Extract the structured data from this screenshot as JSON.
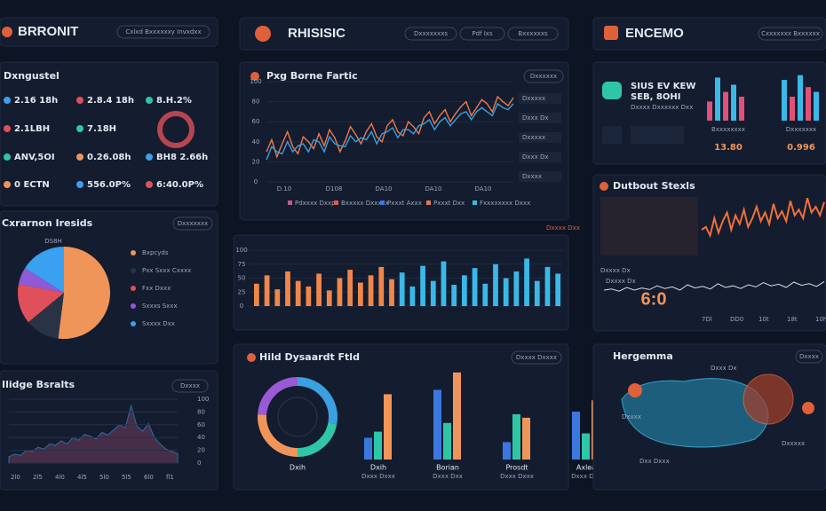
{
  "header_left": {
    "title": "BRRONIT",
    "button": "Cxlxd Bxxxxxxy Invxdxx"
  },
  "header_mid": {
    "title": "RHISISIC",
    "buttons": [
      "Dxxxxxxxs",
      "Pdf Ixs",
      "Bxxxxxxs"
    ]
  },
  "header_right": {
    "title": "ENCEMO",
    "button": "Cxxxxxxx Bxxxxxx"
  },
  "stats": {
    "title": "Dxngustel",
    "rows": [
      [
        "2.16 18h",
        "2.8.4 18h",
        "8.H.2%"
      ],
      [
        "2.1LBH",
        "7.18H"
      ],
      [
        "ANV,5OI",
        "0.26.08h",
        "BH8 2.66h"
      ],
      [
        "0 ECTN",
        "556.0P%",
        "6:40.0P%"
      ]
    ]
  },
  "pie": {
    "title": "Cxrarnon Iresids",
    "button": "Dxxxxxxx",
    "label": "DS8H",
    "values": [
      52,
      12,
      14,
      6,
      16
    ],
    "colors": [
      "#f0955a",
      "#2a3345",
      "#e0505a",
      "#8e5ad8",
      "#3aa0f0"
    ],
    "legend": [
      "Bxpcyds",
      "Pxx Sxxx Cxxxx",
      "Fxx Dxxx",
      "Sxxxs Sxxx",
      "Sxxxx Dxx"
    ]
  },
  "area": {
    "title": "Ilidge Bsralts",
    "button": "Dxxxx",
    "values": [
      10,
      14,
      12,
      20,
      18,
      25,
      22,
      30,
      28,
      35,
      30,
      40,
      36,
      45,
      42,
      38,
      48,
      44,
      52,
      60,
      55,
      90,
      58,
      50,
      62,
      40,
      30,
      22,
      18,
      15
    ],
    "ylim": [
      0,
      100
    ],
    "yticks": [
      0,
      20,
      40,
      60,
      80,
      100
    ],
    "xlabels": [
      "2l0",
      "2l5",
      "4l0",
      "4l5",
      "5l0",
      "5l5",
      "6l0",
      "fl1"
    ]
  },
  "candle": {
    "title": "Pxg Borne Fartic",
    "button": "Dxxxxxx",
    "ylim": [
      0,
      100
    ],
    "yticks": [
      0,
      20,
      40,
      60,
      80,
      100
    ],
    "series": [
      {
        "color": "#f07a4a",
        "values": [
          30,
          42,
          25,
          38,
          50,
          35,
          28,
          45,
          40,
          33,
          48,
          36,
          52,
          44,
          30,
          41,
          55,
          47,
          38,
          50,
          58,
          45,
          40,
          56,
          62,
          50,
          46,
          60,
          55,
          48,
          64,
          70,
          58,
          66,
          72,
          60,
          68,
          75,
          80,
          66,
          74,
          82,
          78,
          70,
          85,
          80,
          76,
          84
        ]
      },
      {
        "color": "#3aa0e0",
        "values": [
          22,
          35,
          30,
          28,
          40,
          30,
          36,
          38,
          30,
          42,
          40,
          30,
          45,
          38,
          36,
          35,
          46,
          40,
          44,
          42,
          50,
          38,
          48,
          50,
          54,
          44,
          52,
          52,
          48,
          56,
          58,
          62,
          52,
          60,
          64,
          56,
          62,
          68,
          70,
          62,
          70,
          74,
          70,
          66,
          78,
          74,
          72,
          78
        ]
      }
    ],
    "xlabels": [
      "D.10",
      "D108",
      "DA10",
      "DA10",
      "DA10"
    ],
    "legend": [
      "Pdxxxx Dxxp",
      "Bxxxxx Dxxxxx",
      "Pxxxt Axxx",
      "Pxxxt Dxx",
      "Fxxxxxxxx Dxxx"
    ],
    "legend_colors": [
      "#c25a8a",
      "#e05a4a",
      "#3a78e0",
      "#e07a4a",
      "#3ab8e8"
    ],
    "side": [
      "Dxxxxx",
      "Dxxx Dx",
      "Dxxxxx",
      "Dxxx Dx",
      "Dxxxx"
    ]
  },
  "bars": {
    "note": "Dxxxx Dxx",
    "ylim": [
      0,
      100
    ],
    "yticks": [
      0,
      25,
      50,
      75,
      100
    ],
    "colors": [
      "#f0874a",
      "#3ab8e8"
    ],
    "orange": [
      40,
      55,
      30,
      62,
      45,
      35,
      58,
      28,
      50,
      65,
      42,
      55,
      70,
      48
    ],
    "teal": [
      60,
      35,
      72,
      45,
      80,
      38,
      55,
      68,
      40,
      75,
      50,
      62,
      85,
      45,
      70,
      58
    ]
  },
  "donut": {
    "title": "Hild Dysaardt Ftld",
    "button": "Dxxxx Dxxxx",
    "values": [
      28,
      22,
      26,
      24
    ],
    "colors": [
      "#3aa0e0",
      "#2fc6a8",
      "#f0955a",
      "#9a5ad8"
    ],
    "groups": [
      [
        25,
        32,
        75
      ],
      [
        80,
        42,
        100
      ],
      [
        20,
        52,
        48
      ],
      [
        55,
        30,
        68
      ]
    ],
    "group_colors": [
      "#3a78e0",
      "#2fc6a8",
      "#f0955a"
    ],
    "ylim": [
      0,
      110
    ],
    "labels": [
      "Dxih",
      "Borian",
      "Prosdt",
      "Axlea"
    ],
    "sublabels": [
      "Dxxx Dxxx",
      "Dxxx Dxx",
      "Dxxx Dxxx",
      "Dxxx Dxx"
    ]
  },
  "right_stats": {
    "headline": [
      "SIUS EV KEW",
      "SEB, 8OHI"
    ],
    "caption": "Dxxxx Dxxxxxx Dxx",
    "values": [
      "13.80",
      "0.996"
    ],
    "labels": [
      "Bxxxxxxxx",
      "Dxxxxxxx"
    ],
    "chart1": [
      40,
      90,
      60,
      75,
      50
    ],
    "chart2": [
      85,
      50,
      95,
      70,
      60
    ],
    "colors": [
      "#e0507a",
      "#3ab8e8"
    ]
  },
  "right_line": {
    "title": "Dutbout Stexls",
    "big": "6:0",
    "ylim": [
      0,
      100
    ],
    "orange": [
      40,
      45,
      30,
      60,
      35,
      55,
      70,
      40,
      65,
      50,
      75,
      45,
      60,
      80,
      55,
      70,
      50,
      85,
      60,
      72,
      55,
      90,
      65,
      75,
      60,
      95,
      70,
      80,
      65,
      88
    ],
    "white": [
      30,
      32,
      28,
      35,
      30,
      34,
      31,
      38,
      33,
      36,
      30,
      40,
      34,
      37,
      32,
      42,
      35,
      38,
      33,
      40,
      36,
      44,
      38,
      41,
      35,
      45,
      39,
      42,
      37,
      46
    ],
    "xlabels": [
      "7Dl",
      "DD0",
      "10t",
      "18t",
      "10h"
    ],
    "labels": [
      "Dxxxx Dx",
      "Dxxxx Dx"
    ]
  },
  "map": {
    "title": "Hergemma",
    "button": "Dxxxx",
    "labels": [
      "Dxxxx",
      "Dxxx Dx",
      "Dxxxxx",
      "Dxx Dxxx"
    ]
  }
}
